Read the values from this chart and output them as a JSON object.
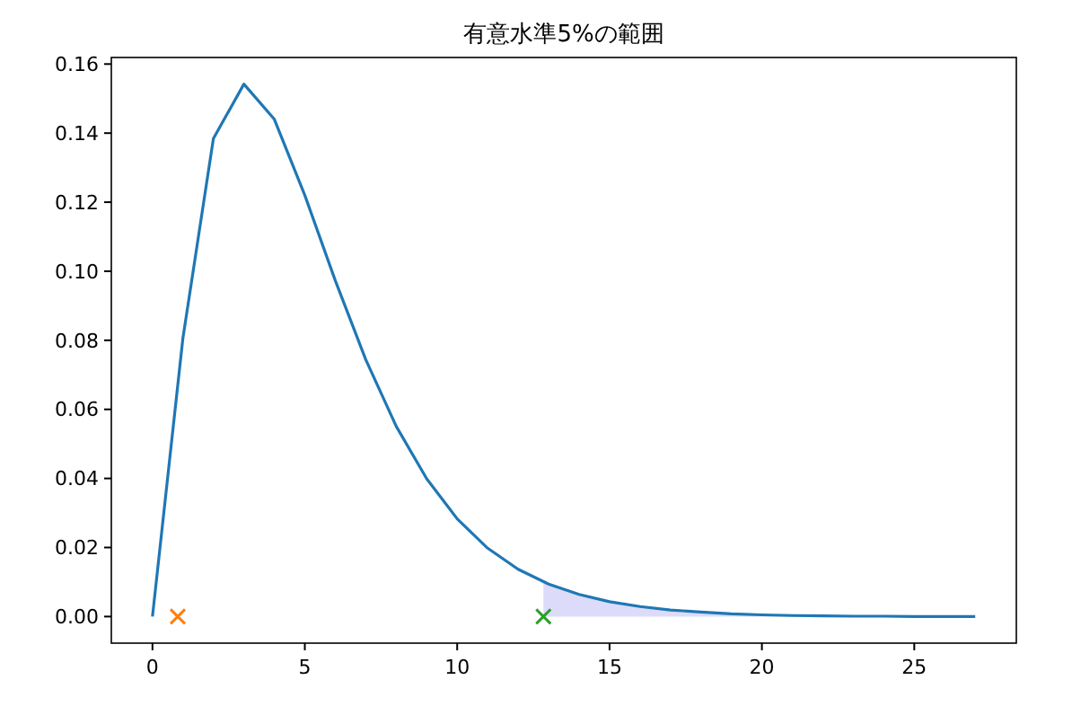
{
  "chart_data": {
    "type": "line",
    "title": "有意水準5%の範囲",
    "xlim": [
      -1.35,
      28.35
    ],
    "xticks": [
      0,
      5,
      10,
      15,
      20,
      25
    ],
    "ylim": [
      -0.0077,
      0.1619
    ],
    "yticks": [
      {
        "value": 0,
        "label": "0.00"
      },
      {
        "value": 0.02,
        "label": "0.02"
      },
      {
        "value": 0.04,
        "label": "0.04"
      },
      {
        "value": 0.06,
        "label": "0.06"
      },
      {
        "value": 0.08,
        "label": "0.08"
      },
      {
        "value": 0.1,
        "label": "0.10"
      },
      {
        "value": 0.12,
        "label": "0.12"
      },
      {
        "value": 0.14,
        "label": "0.14"
      },
      {
        "value": 0.16,
        "label": "0.16"
      }
    ],
    "grid": false,
    "series": [
      {
        "type": "area",
        "color": "#dcdcfa",
        "x": [
          12.83,
          13,
          14,
          15,
          16,
          17,
          18,
          19,
          20,
          21,
          22,
          23,
          24,
          25,
          26,
          27
        ],
        "values": [
          0.0097,
          0.0094,
          0.0064,
          0.0043,
          0.0029,
          0.0019,
          0.0013,
          0.0008,
          0.0005,
          0.0003,
          0.0002,
          0.0001,
          0.0001,
          0,
          0,
          0
        ]
      },
      {
        "color": "#1f77b4",
        "marker": "none",
        "x": [
          0,
          1,
          2,
          3,
          4,
          5,
          6,
          7,
          8,
          9,
          10,
          11,
          12,
          13,
          14,
          15,
          16,
          17,
          18,
          19,
          20,
          21,
          22,
          23,
          24,
          25,
          26,
          27
        ],
        "values": [
          0,
          0.0807,
          0.1384,
          0.1542,
          0.144,
          0.122,
          0.0973,
          0.0744,
          0.0551,
          0.0399,
          0.0283,
          0.0198,
          0.0137,
          0.0094,
          0.0064,
          0.0043,
          0.0029,
          0.0019,
          0.0013,
          0.0008,
          0.0005,
          0.0003,
          0.0002,
          0.0001,
          0.0001,
          0,
          0,
          0
        ]
      },
      {
        "type": "scatter",
        "color": "#ff7f0e",
        "marker": "cross",
        "x": [
          0.83
        ],
        "values": [
          0
        ]
      },
      {
        "type": "scatter",
        "color": "#2ca02c",
        "marker": "cross",
        "x": [
          12.83
        ],
        "values": [
          0
        ]
      }
    ]
  }
}
